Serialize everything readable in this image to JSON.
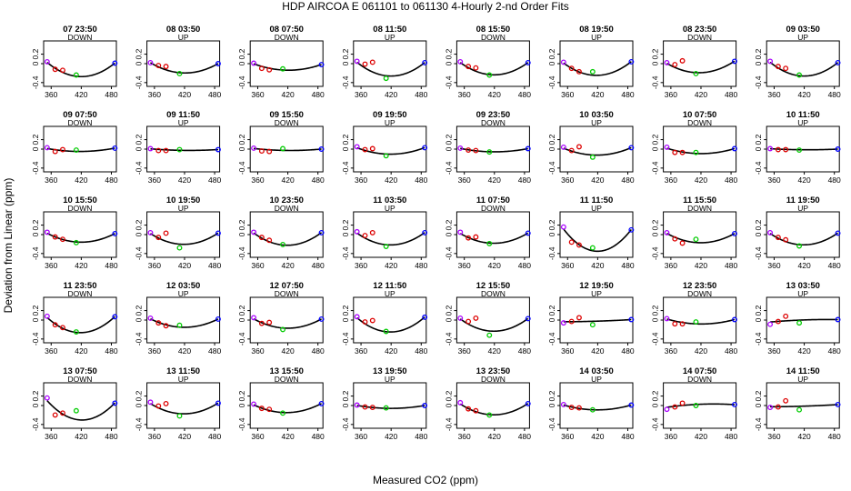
{
  "chart_data": {
    "type": "scatter",
    "title": "HDP   AIRCOA E   061101 to 061130   4-Hourly 2-nd Order Fits",
    "xlabel": "Measured CO2 (ppm)",
    "ylabel": "Deviation from Linear (ppm)",
    "xlim": [
      345,
      490
    ],
    "ylim": [
      -0.48,
      0.48
    ],
    "x_ticks": [
      360,
      420,
      480
    ],
    "x_tick_labels": [
      "360",
      "420",
      "480"
    ],
    "y_ticks": [
      -0.4,
      0.0,
      0.2
    ],
    "y_tick_labels": [
      "-0.4",
      "0",
      "0.2"
    ],
    "standard_x": [
      352,
      368,
      383,
      410,
      487
    ],
    "standard_colors": [
      "#aa00ff",
      "#dd0000",
      "#dd0000",
      "#00cc00",
      "#0000ff"
    ],
    "curve_color": "#000000",
    "panels": [
      {
        "title": "07 23:50",
        "dir": "DOWN",
        "y": [
          0.04,
          -0.12,
          -0.14,
          -0.24,
          0.01
        ],
        "fit": [
          0.04,
          -0.11,
          -0.2,
          -0.25,
          0.01
        ]
      },
      {
        "title": "08 03:50",
        "dir": "UP",
        "y": [
          0.02,
          -0.04,
          -0.06,
          -0.21,
          0.0
        ],
        "fit": [
          0.03,
          -0.08,
          -0.14,
          -0.18,
          0.0
        ]
      },
      {
        "title": "08 07:50",
        "dir": "DOWN",
        "y": [
          0.01,
          -0.1,
          -0.13,
          -0.11,
          -0.02
        ],
        "fit": [
          0.01,
          -0.07,
          -0.11,
          -0.12,
          -0.02
        ]
      },
      {
        "title": "08 11:50",
        "dir": "UP",
        "y": [
          0.05,
          -0.01,
          0.03,
          -0.31,
          0.02
        ],
        "fit": [
          0.05,
          -0.11,
          -0.2,
          -0.23,
          0.02
        ]
      },
      {
        "title": "08 15:50",
        "dir": "DOWN",
        "y": [
          0.04,
          -0.06,
          -0.09,
          -0.24,
          0.02
        ],
        "fit": [
          0.04,
          -0.1,
          -0.18,
          -0.21,
          0.02
        ]
      },
      {
        "title": "08 19:50",
        "dir": "UP",
        "y": [
          0.03,
          -0.1,
          -0.17,
          -0.17,
          0.04
        ],
        "fit": [
          0.03,
          -0.11,
          -0.2,
          -0.22,
          0.04
        ]
      },
      {
        "title": "08 23:50",
        "dir": "DOWN",
        "y": [
          0.02,
          -0.02,
          0.06,
          -0.21,
          0.05
        ],
        "fit": [
          0.02,
          -0.09,
          -0.16,
          -0.17,
          0.05
        ]
      },
      {
        "title": "09 03:50",
        "dir": "UP",
        "y": [
          0.05,
          -0.06,
          -0.1,
          -0.24,
          0.02
        ],
        "fit": [
          0.05,
          -0.11,
          -0.2,
          -0.23,
          0.02
        ]
      },
      {
        "title": "09 07:50",
        "dir": "DOWN",
        "y": [
          0.03,
          -0.05,
          -0.01,
          -0.02,
          0.02
        ],
        "fit": [
          0.02,
          -0.02,
          -0.04,
          -0.04,
          0.02
        ]
      },
      {
        "title": "09 11:50",
        "dir": "UP",
        "y": [
          0.01,
          -0.03,
          -0.03,
          -0.01,
          -0.01
        ],
        "fit": [
          0.01,
          -0.01,
          -0.02,
          -0.02,
          -0.01
        ]
      },
      {
        "title": "09 15:50",
        "dir": "DOWN",
        "y": [
          0.02,
          -0.04,
          -0.05,
          0.01,
          0.0
        ],
        "fit": [
          0.02,
          -0.01,
          -0.02,
          -0.02,
          0.0
        ]
      },
      {
        "title": "09 19:50",
        "dir": "UP",
        "y": [
          0.05,
          -0.01,
          0.01,
          -0.14,
          0.03
        ],
        "fit": [
          0.04,
          -0.04,
          -0.08,
          -0.09,
          0.03
        ]
      },
      {
        "title": "09 23:50",
        "dir": "DOWN",
        "y": [
          0.02,
          -0.02,
          -0.03,
          -0.06,
          0.01
        ],
        "fit": [
          0.02,
          -0.02,
          -0.04,
          -0.05,
          0.01
        ]
      },
      {
        "title": "10 03:50",
        "dir": "UP",
        "y": [
          0.04,
          -0.03,
          0.05,
          -0.17,
          0.03
        ],
        "fit": [
          0.03,
          -0.05,
          -0.1,
          -0.11,
          0.03
        ]
      },
      {
        "title": "10 07:50",
        "dir": "DOWN",
        "y": [
          0.04,
          -0.07,
          -0.07,
          -0.07,
          0.01
        ],
        "fit": [
          0.03,
          -0.04,
          -0.07,
          -0.08,
          0.01
        ]
      },
      {
        "title": "10 11:50",
        "dir": "UP",
        "y": [
          0.01,
          -0.01,
          -0.01,
          -0.02,
          0.0
        ],
        "fit": [
          0.01,
          0.0,
          -0.01,
          -0.01,
          0.0
        ]
      },
      {
        "title": "10 15:50",
        "dir": "DOWN",
        "y": [
          0.05,
          -0.05,
          -0.1,
          -0.17,
          0.02
        ],
        "fit": [
          0.04,
          -0.06,
          -0.12,
          -0.14,
          0.02
        ]
      },
      {
        "title": "10 19:50",
        "dir": "UP",
        "y": [
          0.04,
          -0.06,
          0.03,
          -0.28,
          0.03
        ],
        "fit": [
          0.04,
          -0.09,
          -0.16,
          -0.18,
          0.03
        ]
      },
      {
        "title": "10 23:50",
        "dir": "DOWN",
        "y": [
          0.05,
          -0.06,
          -0.12,
          -0.21,
          0.04
        ],
        "fit": [
          0.05,
          -0.09,
          -0.17,
          -0.2,
          0.04
        ]
      },
      {
        "title": "11 03:50",
        "dir": "UP",
        "y": [
          0.06,
          -0.02,
          0.04,
          -0.25,
          0.04
        ],
        "fit": [
          0.05,
          -0.09,
          -0.17,
          -0.19,
          0.04
        ]
      },
      {
        "title": "11 07:50",
        "dir": "DOWN",
        "y": [
          0.05,
          -0.07,
          -0.05,
          -0.19,
          0.03
        ],
        "fit": [
          0.04,
          -0.08,
          -0.14,
          -0.16,
          0.03
        ]
      },
      {
        "title": "11 11:50",
        "dir": "UP",
        "y": [
          0.16,
          -0.16,
          -0.22,
          -0.28,
          0.1
        ],
        "fit": [
          0.16,
          -0.12,
          -0.26,
          -0.29,
          0.1
        ]
      },
      {
        "title": "11 15:50",
        "dir": "DOWN",
        "y": [
          0.04,
          -0.09,
          -0.18,
          -0.1,
          0.02
        ],
        "fit": [
          0.04,
          -0.07,
          -0.13,
          -0.15,
          0.02
        ]
      },
      {
        "title": "11 19:50",
        "dir": "UP",
        "y": [
          0.04,
          -0.06,
          -0.11,
          -0.24,
          0.03
        ],
        "fit": [
          0.04,
          -0.09,
          -0.17,
          -0.19,
          0.03
        ]
      },
      {
        "title": "11 23:50",
        "dir": "DOWN",
        "y": [
          0.08,
          -0.1,
          -0.16,
          -0.25,
          0.07
        ],
        "fit": [
          0.08,
          -0.11,
          -0.2,
          -0.23,
          0.07
        ]
      },
      {
        "title": "12 03:50",
        "dir": "UP",
        "y": [
          0.04,
          -0.06,
          -0.12,
          -0.11,
          0.02
        ],
        "fit": [
          0.04,
          -0.06,
          -0.12,
          -0.13,
          0.02
        ]
      },
      {
        "title": "12 07:50",
        "dir": "DOWN",
        "y": [
          0.05,
          -0.07,
          -0.05,
          -0.2,
          0.02
        ],
        "fit": [
          0.04,
          -0.07,
          -0.13,
          -0.15,
          0.02
        ]
      },
      {
        "title": "12 11:50",
        "dir": "UP",
        "y": [
          0.07,
          -0.04,
          -0.01,
          -0.24,
          0.06
        ],
        "fit": [
          0.07,
          -0.1,
          -0.19,
          -0.22,
          0.06
        ]
      },
      {
        "title": "12 15:50",
        "dir": "DOWN",
        "y": [
          0.04,
          -0.03,
          0.04,
          -0.32,
          0.03
        ],
        "fit": [
          0.04,
          -0.1,
          -0.18,
          -0.21,
          0.03
        ]
      },
      {
        "title": "12 19:50",
        "dir": "UP",
        "y": [
          -0.06,
          -0.03,
          0.05,
          -0.1,
          0.01
        ],
        "fit": [
          -0.04,
          -0.03,
          -0.03,
          -0.03,
          0.01
        ]
      },
      {
        "title": "12 23:50",
        "dir": "DOWN",
        "y": [
          0.03,
          -0.08,
          -0.08,
          -0.04,
          0.01
        ],
        "fit": [
          0.03,
          -0.03,
          -0.06,
          -0.07,
          0.01
        ]
      },
      {
        "title": "13 03:50",
        "dir": "UP",
        "y": [
          -0.09,
          -0.03,
          0.08,
          -0.06,
          0.01
        ],
        "fit": [
          -0.05,
          -0.02,
          -0.01,
          -0.01,
          0.01
        ]
      },
      {
        "title": "13 07:50",
        "dir": "DOWN",
        "y": [
          0.16,
          -0.2,
          -0.16,
          -0.11,
          0.05
        ],
        "fit": [
          0.14,
          -0.1,
          -0.22,
          -0.25,
          0.05
        ]
      },
      {
        "title": "13 11:50",
        "dir": "UP",
        "y": [
          0.07,
          -0.01,
          0.04,
          -0.22,
          0.05
        ],
        "fit": [
          0.06,
          -0.07,
          -0.13,
          -0.15,
          0.05
        ]
      },
      {
        "title": "13 15:50",
        "dir": "DOWN",
        "y": [
          0.03,
          -0.06,
          -0.08,
          -0.16,
          0.04
        ],
        "fit": [
          0.03,
          -0.07,
          -0.12,
          -0.13,
          0.04
        ]
      },
      {
        "title": "13 19:50",
        "dir": "UP",
        "y": [
          0.01,
          -0.03,
          -0.04,
          -0.05,
          0.0
        ],
        "fit": [
          0.01,
          -0.03,
          -0.05,
          -0.05,
          0.0
        ]
      },
      {
        "title": "13 23:50",
        "dir": "DOWN",
        "y": [
          0.06,
          -0.07,
          -0.11,
          -0.2,
          0.04
        ],
        "fit": [
          0.05,
          -0.08,
          -0.15,
          -0.17,
          0.04
        ]
      },
      {
        "title": "14 03:50",
        "dir": "UP",
        "y": [
          0.02,
          -0.04,
          -0.05,
          -0.09,
          0.01
        ],
        "fit": [
          0.02,
          -0.04,
          -0.07,
          -0.08,
          0.01
        ]
      },
      {
        "title": "14 07:50",
        "dir": "DOWN",
        "y": [
          -0.08,
          -0.03,
          0.05,
          0.0,
          0.02
        ],
        "fit": [
          -0.05,
          0.0,
          0.01,
          0.01,
          0.02
        ]
      },
      {
        "title": "14 11:50",
        "dir": "UP",
        "y": [
          -0.04,
          -0.03,
          0.1,
          -0.09,
          0.02
        ],
        "fit": [
          -0.03,
          -0.02,
          -0.02,
          -0.02,
          0.02
        ]
      }
    ]
  }
}
